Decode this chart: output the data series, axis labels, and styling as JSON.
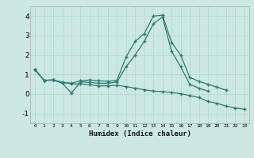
{
  "x": [
    0,
    1,
    2,
    3,
    4,
    5,
    6,
    7,
    8,
    9,
    10,
    11,
    12,
    13,
    14,
    15,
    16,
    17,
    18,
    19,
    20,
    21,
    22,
    23
  ],
  "line1": [
    1.25,
    0.7,
    0.72,
    0.6,
    0.55,
    0.68,
    0.72,
    0.68,
    0.65,
    0.7,
    1.9,
    2.7,
    3.1,
    4.0,
    4.05,
    2.65,
    2.0,
    0.85,
    0.65,
    0.5,
    0.35,
    0.2,
    null,
    null
  ],
  "line2": [
    1.25,
    0.7,
    0.72,
    0.55,
    0.05,
    0.62,
    0.6,
    0.55,
    0.55,
    0.62,
    1.4,
    2.0,
    2.7,
    3.6,
    3.95,
    2.2,
    1.4,
    0.5,
    0.3,
    0.15,
    null,
    null,
    null,
    null
  ],
  "line3": [
    1.25,
    0.7,
    0.72,
    0.6,
    0.52,
    0.52,
    0.48,
    0.42,
    0.42,
    0.45,
    0.38,
    0.3,
    0.22,
    0.15,
    0.12,
    0.08,
    0.02,
    -0.08,
    -0.18,
    -0.38,
    -0.48,
    -0.62,
    -0.72,
    -0.78
  ],
  "color": "#2d7a6e",
  "bg_color": "#cce8e2",
  "grid_color": "#b8d8d2",
  "xlabel": "Humidex (Indice chaleur)",
  "ylim": [
    -1.5,
    4.5
  ],
  "xlim": [
    -0.5,
    23.5
  ],
  "yticks": [
    -1,
    0,
    1,
    2,
    3,
    4
  ],
  "xticks": [
    0,
    1,
    2,
    3,
    4,
    5,
    6,
    7,
    8,
    9,
    10,
    11,
    12,
    13,
    14,
    15,
    16,
    17,
    18,
    19,
    20,
    21,
    22,
    23
  ]
}
